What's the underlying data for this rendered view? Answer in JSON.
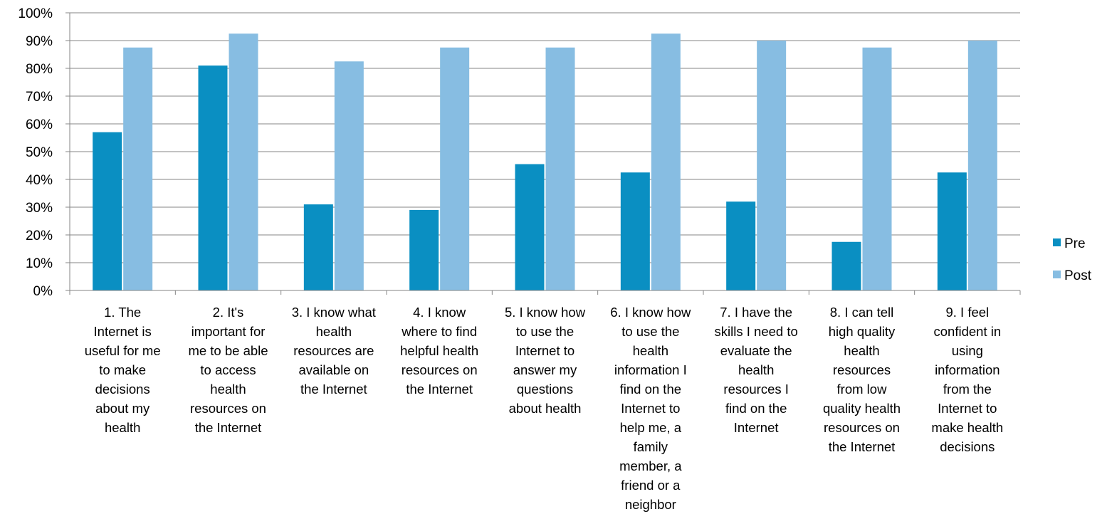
{
  "chart_data": {
    "type": "bar",
    "title": "",
    "xlabel": "",
    "ylabel": "",
    "ylim": [
      0,
      100
    ],
    "y_ticks": [
      "0%",
      "10%",
      "20%",
      "30%",
      "40%",
      "50%",
      "60%",
      "70%",
      "80%",
      "90%",
      "100%"
    ],
    "grid": true,
    "legend_position": "right",
    "categories": [
      "1. The Internet is useful for me to make decisions about my health",
      "2. It's important for me to be able to access health resources on the Internet",
      "3. I know what health resources are available on the Internet",
      "4. I know where to find helpful health resources on the Internet",
      "5. I know how to use the Internet to answer my questions about health",
      "6. I know how to use the health information I find on the Internet to help me, a family member, a friend or a neighbor",
      "7. I have the skills I need to evaluate the health resources I find on the Internet",
      "8. I can tell high quality health resources from low quality health resources on the Internet",
      "9. I feel confident in using information from the Internet to make health decisions"
    ],
    "category_lines": [
      [
        "1. The",
        "Internet is",
        "useful for me",
        "to make",
        "decisions",
        "about my",
        "health"
      ],
      [
        "2. It's",
        "important for",
        "me to be able",
        "to access",
        "health",
        "resources on",
        "the Internet"
      ],
      [
        "3. I know what",
        "health",
        "resources are",
        "available on",
        "the Internet"
      ],
      [
        "4. I know",
        "where to find",
        "helpful health",
        "resources on",
        "the Internet"
      ],
      [
        "5. I know how",
        "to use the",
        "Internet to",
        "answer my",
        "questions",
        "about health"
      ],
      [
        "6. I know how",
        "to use the",
        "health",
        "information I",
        "find on the",
        "Internet to",
        "help me, a",
        "family",
        "member, a",
        "friend or a",
        "neighbor"
      ],
      [
        "7. I have the",
        "skills I need to",
        "evaluate the",
        "health",
        "resources I",
        "find on the",
        "Internet"
      ],
      [
        "8. I can tell",
        "high quality",
        "health",
        "resources",
        "from low",
        "quality health",
        "resources on",
        "the Internet"
      ],
      [
        "9. I feel",
        "confident in",
        "using",
        "information",
        "from the",
        "Internet to",
        "make health",
        "decisions"
      ]
    ],
    "series": [
      {
        "name": "Pre",
        "color": "#0a8fc2",
        "values": [
          57,
          81,
          31,
          29,
          45.5,
          42.5,
          32,
          17.5,
          42.5
        ]
      },
      {
        "name": "Post",
        "color": "#87bde2",
        "values": [
          87.5,
          92.5,
          82.5,
          87.5,
          87.5,
          92.5,
          90,
          87.5,
          90
        ]
      }
    ]
  }
}
